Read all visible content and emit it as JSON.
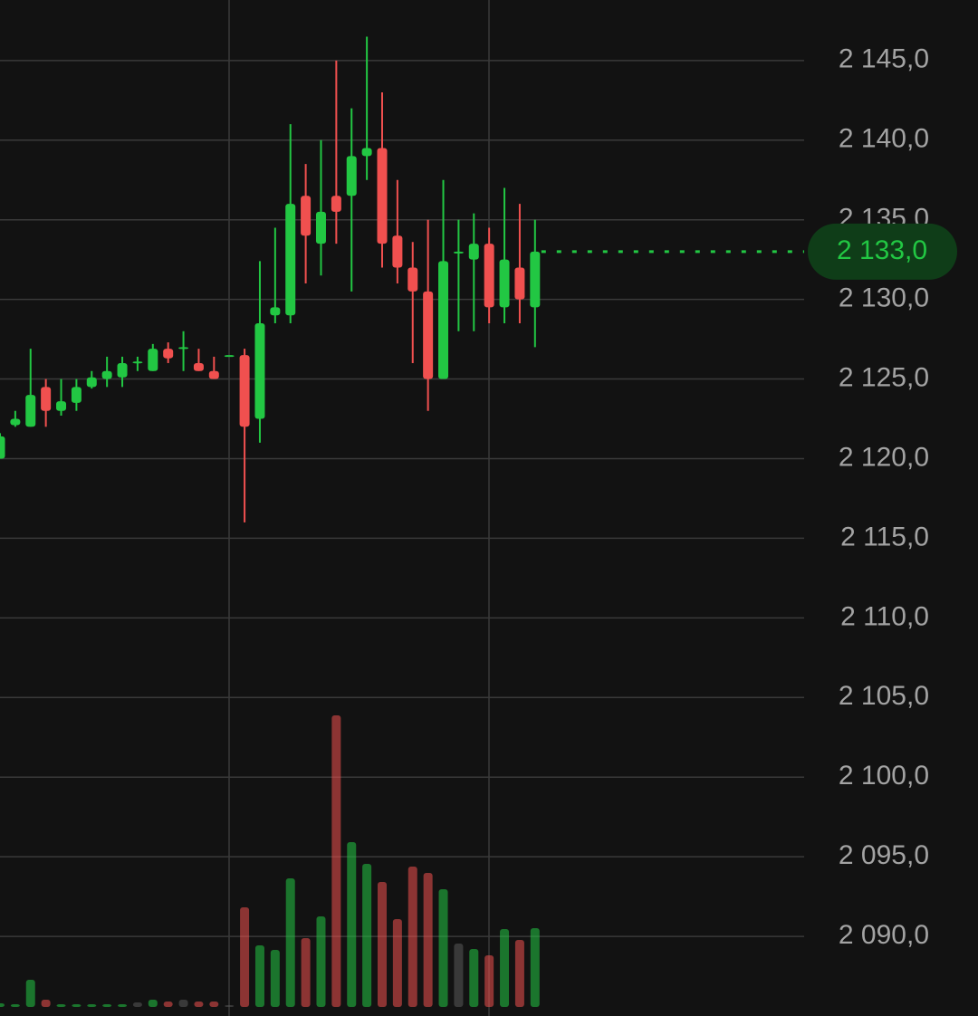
{
  "chart_data": {
    "type": "candlestick",
    "open": [
      2120,
      2122.1,
      2122,
      2124.5,
      2123,
      2123.5,
      2124.5,
      2125,
      2125.1,
      2126.1,
      2125.5,
      2126.9,
      2127,
      2126,
      2125.5,
      2126.5,
      2126.5,
      2122.5,
      2129,
      2129,
      2136.5,
      2133.5,
      2136.5,
      2136.5,
      2139,
      2139.5,
      2134,
      2132,
      2130.5,
      2125,
      2133,
      2132.5,
      2133.5,
      2129.5,
      2132,
      2129.5
    ],
    "high": [
      2121.6,
      2123,
      2126.9,
      2125,
      2125,
      2125,
      2125.5,
      2126.4,
      2126.4,
      2126.4,
      2127.2,
      2127.3,
      2128,
      2126.9,
      2126.4,
      2126.5,
      2126.9,
      2132.4,
      2134.5,
      2141,
      2138.5,
      2140,
      2145,
      2142,
      2146.5,
      2143,
      2137.5,
      2133.6,
      2135,
      2137.5,
      2135,
      2135.4,
      2134.5,
      2137,
      2136,
      2135
    ],
    "low": [
      2120,
      2122,
      2122,
      2122,
      2122.7,
      2123,
      2124.4,
      2124.5,
      2124.5,
      2125.5,
      2125.5,
      2126,
      2125.5,
      2125.5,
      2125,
      2126.5,
      2116,
      2121,
      2128.5,
      2128.5,
      2131,
      2131.5,
      2133.5,
      2130.5,
      2137.5,
      2132,
      2131,
      2126,
      2123,
      2125,
      2128,
      2128,
      2128.5,
      2128.5,
      2128.5,
      2127
    ],
    "close": [
      2121.4,
      2122.5,
      2124,
      2123,
      2123.6,
      2124.5,
      2125.1,
      2125.5,
      2126,
      2126.1,
      2126.9,
      2126.3,
      2127,
      2125.5,
      2125,
      2126.5,
      2122,
      2128.5,
      2129.5,
      2136,
      2134,
      2135.5,
      2135.5,
      2139,
      2139.5,
      2133.5,
      2132,
      2130.5,
      2125,
      2132.4,
      2133,
      2133.5,
      2129.5,
      2132.5,
      2130,
      2133
    ],
    "volume": [
      4,
      3,
      30,
      8,
      3,
      3,
      3,
      3,
      3,
      5,
      8,
      6,
      8,
      6,
      6,
      2,
      110,
      68,
      63,
      142,
      76,
      100,
      322,
      182,
      158,
      138,
      97,
      155,
      148,
      130,
      70,
      64,
      57,
      86,
      74,
      87
    ],
    "volume_ylim": [
      0,
      340
    ],
    "ylim": [
      2085,
      2148.8
    ],
    "yticks": [
      {
        "value": 2090,
        "label": "2 090,0"
      },
      {
        "value": 2095,
        "label": "2 095,0"
      },
      {
        "value": 2100,
        "label": "2 100,0"
      },
      {
        "value": 2105,
        "label": "2 105,0"
      },
      {
        "value": 2110,
        "label": "2 110,0"
      },
      {
        "value": 2115,
        "label": "2 115,0"
      },
      {
        "value": 2120,
        "label": "2 120,0"
      },
      {
        "value": 2125,
        "label": "2 125,0"
      },
      {
        "value": 2130,
        "label": "2 130,0"
      },
      {
        "value": 2135,
        "label": "2 135,0"
      },
      {
        "value": 2140,
        "label": "2 140,0"
      },
      {
        "value": 2145,
        "label": "2 145,0"
      }
    ],
    "last_price": {
      "value": 2133,
      "label": "2 133,0"
    },
    "up_color": "#22c743",
    "down_color": "#f0504f",
    "flat_color": "#5a5a5a",
    "grid": true
  }
}
